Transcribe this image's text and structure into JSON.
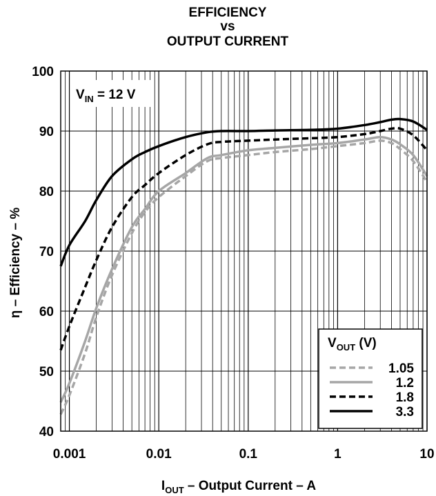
{
  "chart_data": {
    "type": "line",
    "title_lines": [
      "EFFICIENCY",
      "vs",
      "OUTPUT CURRENT"
    ],
    "xlabel": {
      "main": "I",
      "sub": "OUT",
      "rest": " – Output Current – A"
    },
    "ylabel": "η – Efficiency – %",
    "x_scale": "log",
    "xlim": [
      0.0008,
      10
    ],
    "ylim": [
      40,
      100
    ],
    "x_ticks": [
      0.001,
      0.01,
      0.1,
      1,
      10
    ],
    "x_tick_labels": [
      "0.001",
      "0.01",
      "0.1",
      "1",
      "10"
    ],
    "y_ticks": [
      40,
      50,
      60,
      70,
      80,
      90,
      100
    ],
    "y_tick_labels": [
      "40",
      "50",
      "60",
      "70",
      "80",
      "90",
      "100"
    ],
    "grid": true,
    "annotation": {
      "main": "V",
      "sub": "IN",
      "rest": " = 12 V",
      "position": "top-left"
    },
    "legend": {
      "title_main": "V",
      "title_sub": "OUT",
      "title_rest": " (V)",
      "position": "bottom-right"
    },
    "series": [
      {
        "name": "1.05",
        "color": "#a6a6a6",
        "style": "dashed",
        "x": [
          0.0008,
          0.001,
          0.0015,
          0.002,
          0.003,
          0.005,
          0.007,
          0.01,
          0.02,
          0.035,
          0.05,
          0.1,
          0.2,
          0.5,
          1,
          2,
          3,
          4,
          5,
          7,
          10
        ],
        "y": [
          42.8,
          46,
          53,
          59,
          66,
          73,
          76.5,
          79,
          82.5,
          85,
          85.5,
          86,
          86.5,
          87,
          87.5,
          88,
          88.4,
          88,
          87,
          85,
          81.5
        ]
      },
      {
        "name": "1.2",
        "color": "#a6a6a6",
        "style": "solid",
        "x": [
          0.0008,
          0.001,
          0.0015,
          0.002,
          0.003,
          0.005,
          0.007,
          0.01,
          0.02,
          0.035,
          0.05,
          0.1,
          0.2,
          0.5,
          1,
          2,
          3,
          4,
          5,
          7,
          10
        ],
        "y": [
          44.8,
          48,
          55,
          60.5,
          67,
          74,
          77,
          80,
          83,
          85.5,
          86,
          86.8,
          87.2,
          87.7,
          88,
          88.6,
          89,
          88.6,
          87.8,
          86,
          82.5
        ]
      },
      {
        "name": "1.8",
        "color": "#000000",
        "style": "dashed",
        "x": [
          0.0008,
          0.001,
          0.0015,
          0.002,
          0.003,
          0.005,
          0.007,
          0.01,
          0.02,
          0.035,
          0.05,
          0.1,
          0.2,
          0.5,
          1,
          2,
          3,
          4,
          5,
          7,
          10
        ],
        "y": [
          53.5,
          57.5,
          64,
          68.5,
          74,
          79,
          81,
          83,
          86,
          87.8,
          88.2,
          88.4,
          88.6,
          88.8,
          89,
          89.5,
          90,
          90.4,
          90.4,
          89.3,
          86.8
        ]
      },
      {
        "name": "3.3",
        "color": "#000000",
        "style": "solid",
        "x": [
          0.0008,
          0.001,
          0.0015,
          0.002,
          0.003,
          0.005,
          0.007,
          0.01,
          0.02,
          0.035,
          0.05,
          0.1,
          0.2,
          0.5,
          1,
          2,
          3,
          4,
          5,
          7,
          10
        ],
        "y": [
          67.5,
          71,
          75,
          78.5,
          82.5,
          85.3,
          86.5,
          87.5,
          89,
          89.8,
          90,
          90,
          90.1,
          90.2,
          90.4,
          91,
          91.5,
          91.9,
          92,
          91.6,
          90.2
        ]
      }
    ]
  }
}
